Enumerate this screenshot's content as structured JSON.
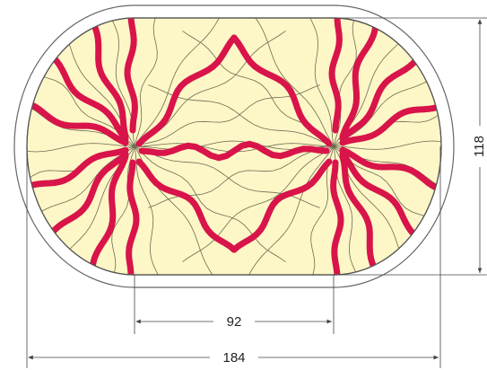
{
  "dimensions": {
    "height_label": "118",
    "inner_width_label": "92",
    "outer_width_label": "184"
  },
  "colors": {
    "panel_fill": "#fdf6c6",
    "accent_red": "#d8144a",
    "outline": "#555555",
    "thin_line": "#6b6b52",
    "dimension_line": "#444444"
  }
}
